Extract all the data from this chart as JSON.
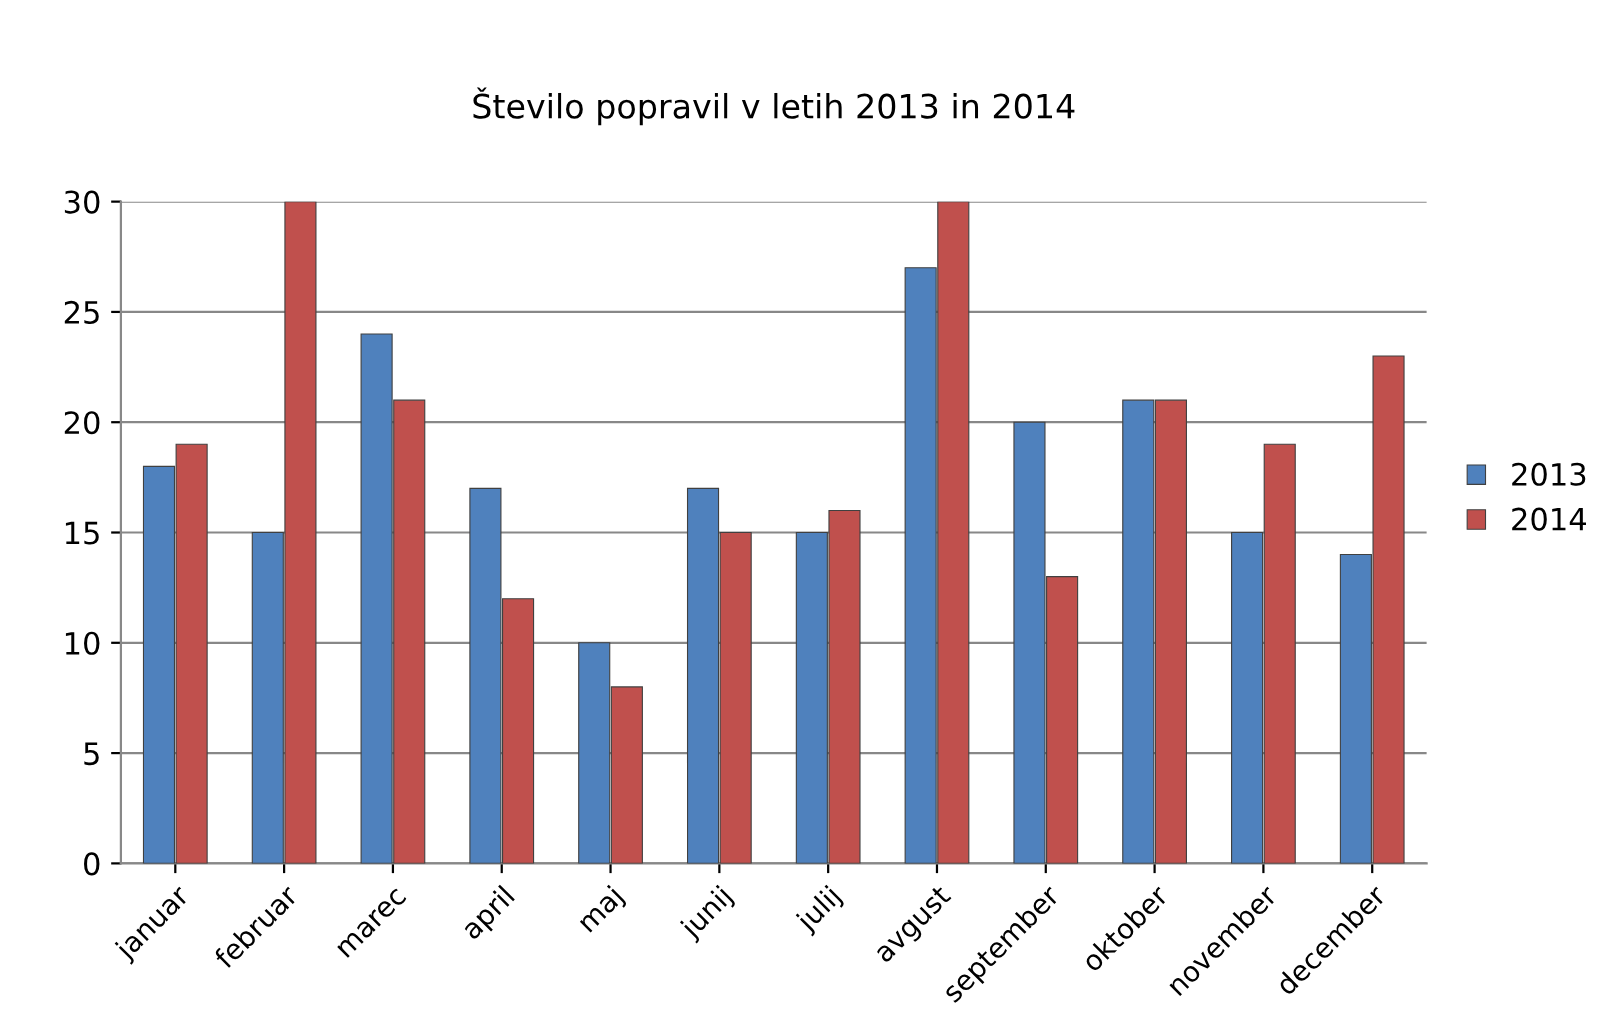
{
  "chart_data": {
    "type": "bar",
    "title": "Število popravil v letih 2013 in 2014",
    "categories": [
      "januar",
      "februar",
      "marec",
      "april",
      "maj",
      "junij",
      "julij",
      "avgust",
      "september",
      "oktober",
      "november",
      "december"
    ],
    "series": [
      {
        "name": "2013",
        "color": "#4f81bd",
        "values": [
          18,
          15,
          24,
          17,
          10,
          17,
          15,
          27,
          20,
          21,
          15,
          14
        ]
      },
      {
        "name": "2014",
        "color": "#c0504d",
        "values": [
          19,
          30,
          21,
          12,
          8,
          15,
          16,
          30,
          13,
          21,
          19,
          23
        ]
      }
    ],
    "ylim": [
      0,
      30
    ],
    "yticks": [
      0,
      5,
      10,
      15,
      20,
      25,
      30
    ],
    "grid": "y",
    "legend": "right"
  }
}
